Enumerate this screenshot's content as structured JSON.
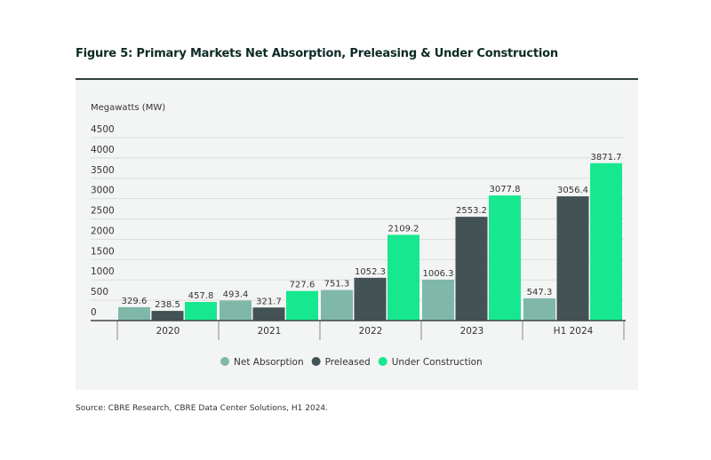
{
  "chart_data": {
    "type": "bar",
    "title": "Figure 5: Primary Markets Net Absorption, Preleasing & Under Construction",
    "ylabel": "Megawatts (MW)",
    "xlabel": "",
    "categories": [
      "2020",
      "2021",
      "2022",
      "2023",
      "H1 2024"
    ],
    "ylim": [
      0,
      4500
    ],
    "yticks": [
      0,
      500,
      1000,
      1500,
      2000,
      2500,
      3000,
      3500,
      4000,
      4500
    ],
    "grid": true,
    "legend_position": "bottom",
    "series": [
      {
        "name": "Net Absorption",
        "color": "#7fb8a9",
        "values": [
          329.6,
          493.4,
          751.3,
          1006.3,
          547.3
        ]
      },
      {
        "name": "Preleased",
        "color": "#435254",
        "values": [
          238.5,
          321.7,
          1052.3,
          2553.2,
          3056.4
        ]
      },
      {
        "name": "Under Construction",
        "color": "#17e88f",
        "values": [
          457.8,
          727.6,
          2109.2,
          3077.8,
          3871.7
        ]
      }
    ],
    "source": "Source: CBRE Research, CBRE Data Center Solutions, H1 2024."
  }
}
